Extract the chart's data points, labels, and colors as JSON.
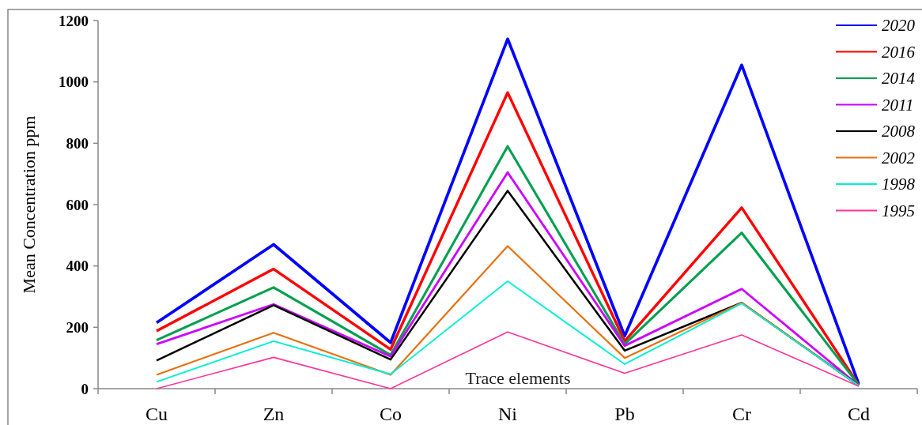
{
  "chart_data": {
    "type": "line",
    "xlabel": "Trace elements",
    "ylabel": "Mean Concentration ppm",
    "categories": [
      "Cu",
      "Zn",
      "Co",
      "Ni",
      "Pb",
      "Cr",
      "Cd"
    ],
    "ylim": [
      0,
      1200
    ],
    "yticks": [
      0,
      200,
      400,
      600,
      800,
      1000,
      1200
    ],
    "grid": false,
    "legend": "top right",
    "marker": "none",
    "line_style": "solid",
    "series": [
      {
        "name": "2020",
        "color": "#0000ff",
        "values": [
          215,
          470,
          150,
          1140,
          172,
          1055,
          15
        ]
      },
      {
        "name": "2016",
        "color": "#ff0000",
        "values": [
          188,
          390,
          128,
          965,
          155,
          590,
          12
        ]
      },
      {
        "name": "2014",
        "color": "#00a050",
        "values": [
          158,
          330,
          110,
          790,
          145,
          508,
          12
        ]
      },
      {
        "name": "2011",
        "color": "#cc00ff",
        "values": [
          145,
          275,
          105,
          705,
          140,
          325,
          10
        ]
      },
      {
        "name": "2008",
        "color": "#000000",
        "values": [
          92,
          272,
          95,
          645,
          124,
          280,
          10
        ]
      },
      {
        "name": "2002",
        "color": "#e87010",
        "values": [
          45,
          182,
          45,
          465,
          100,
          280,
          10
        ]
      },
      {
        "name": "1998",
        "color": "#00f0d0",
        "values": [
          22,
          155,
          47,
          350,
          80,
          278,
          10
        ]
      },
      {
        "name": "1995",
        "color": "#ff3399",
        "values": [
          0,
          102,
          0,
          185,
          50,
          175,
          8
        ]
      }
    ]
  }
}
